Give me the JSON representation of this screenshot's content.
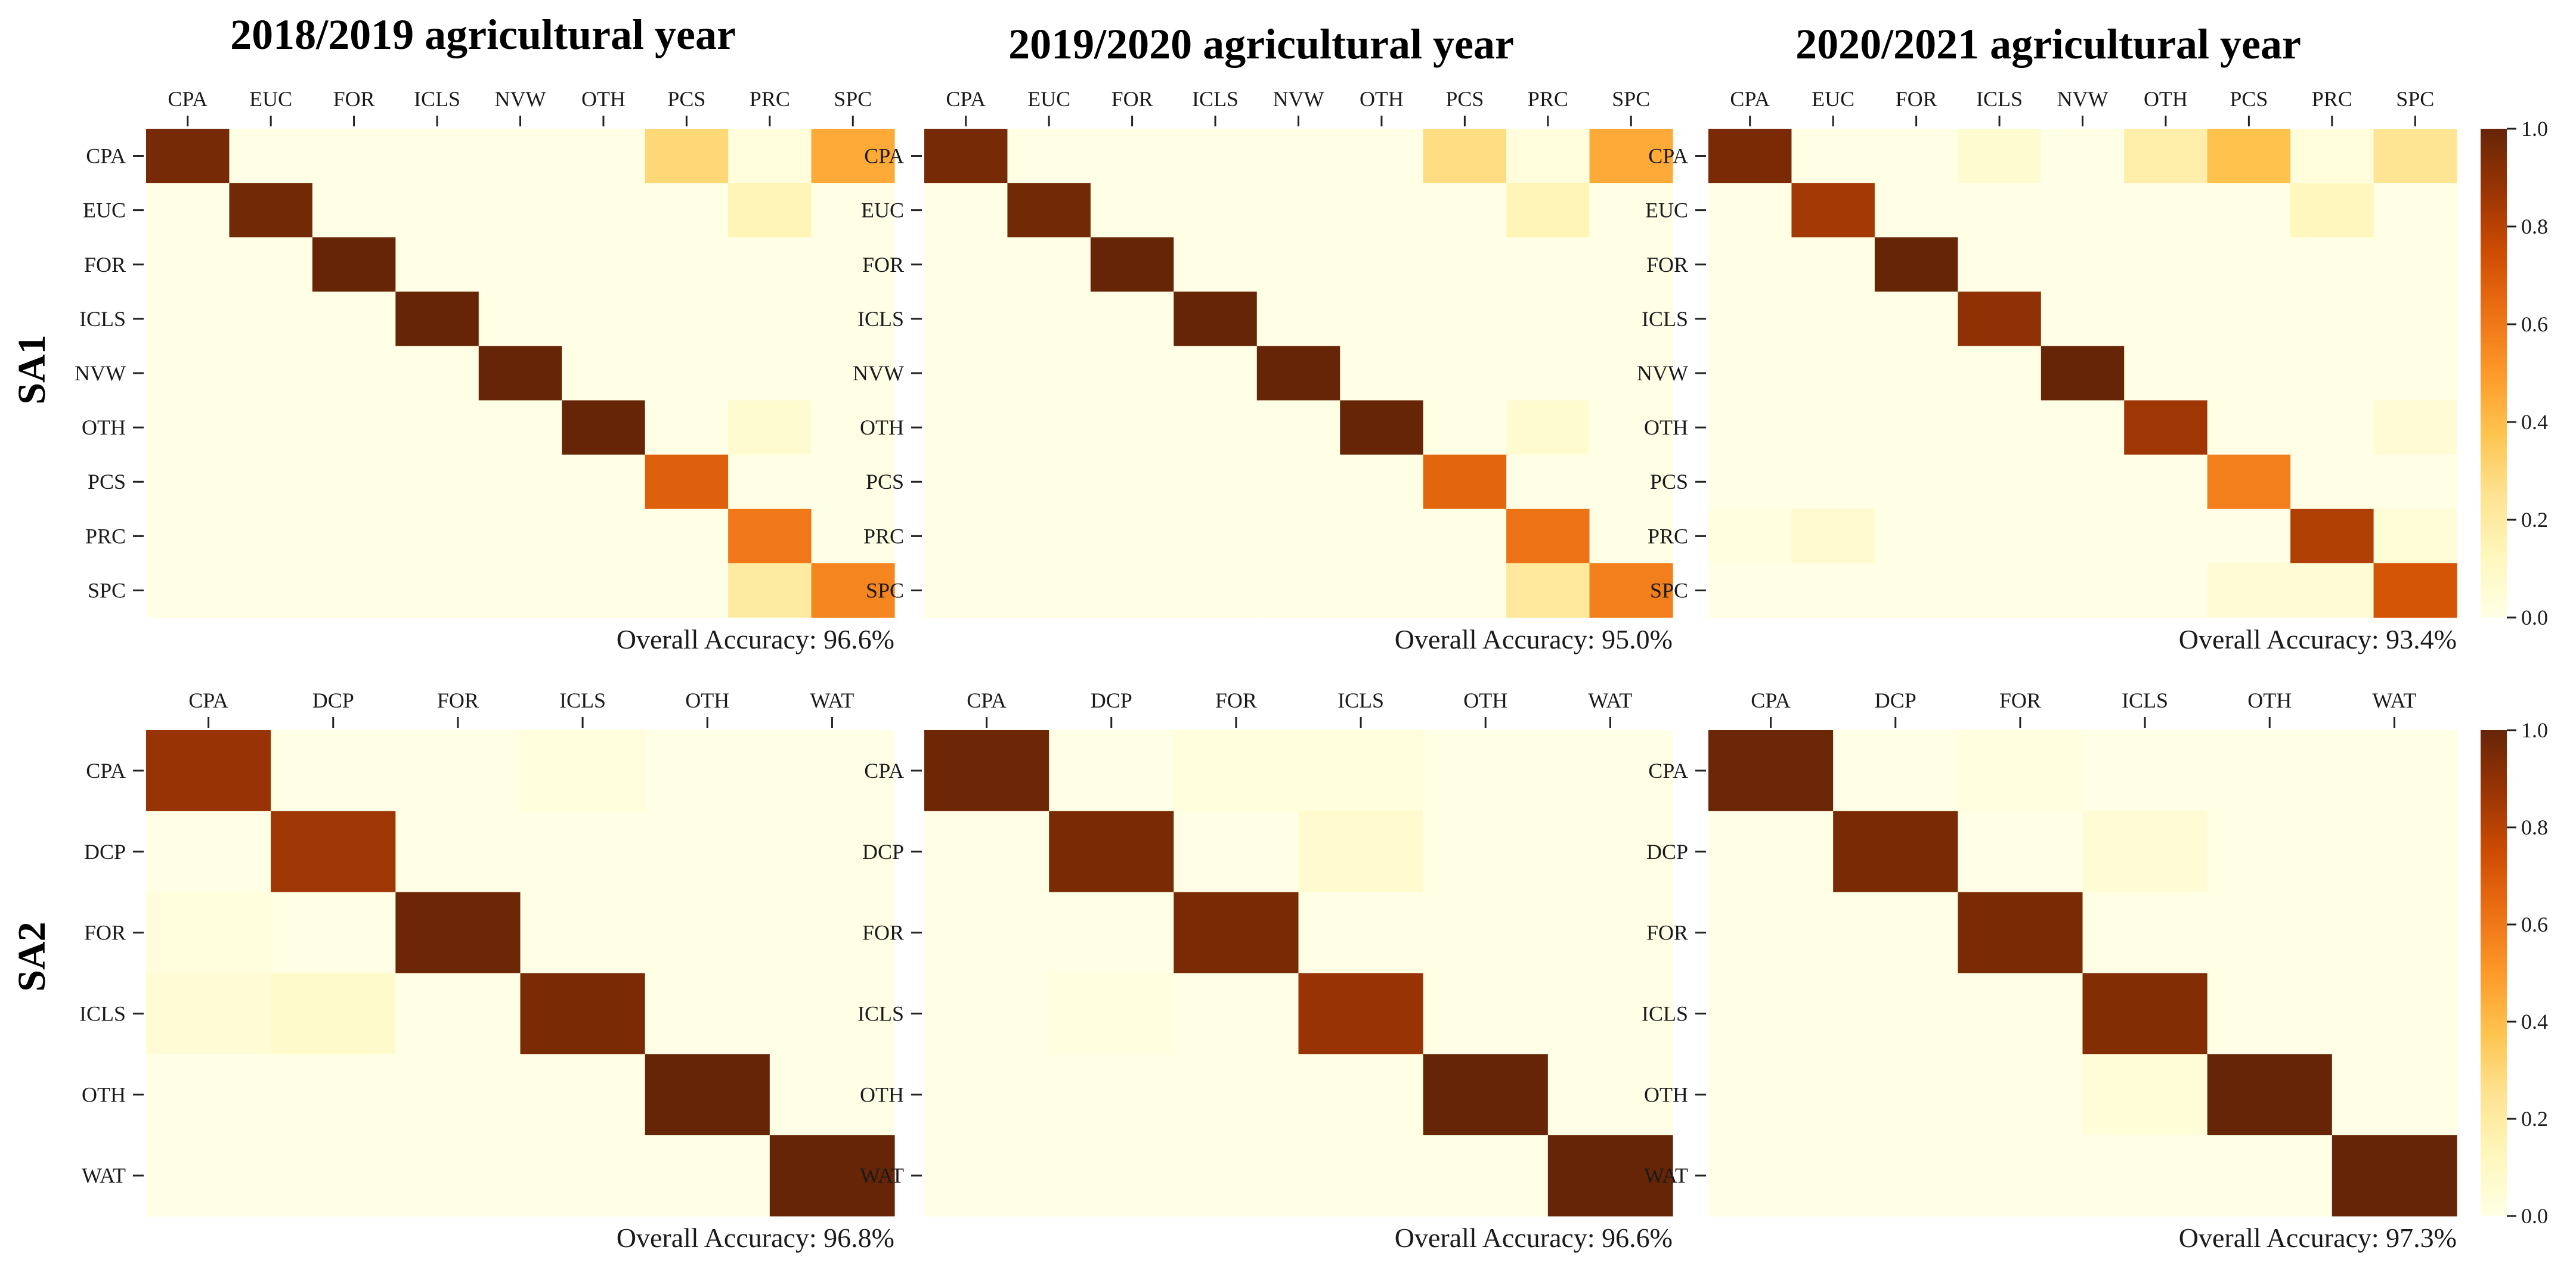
{
  "figure": {
    "column_titles": [
      "2018/2019 agricultural year",
      "2019/2020 agricultural year",
      "2020/2021 agricultural year"
    ],
    "row_labels": [
      "SA1",
      "SA2"
    ],
    "accuracy_prefix": "Overall Accuracy: "
  },
  "colorbar": {
    "ticks": [
      "0.0",
      "0.2",
      "0.4",
      "0.6",
      "0.8",
      "1.0"
    ],
    "range": [
      0,
      1
    ],
    "stops": [
      "#ffffe5",
      "#fff7bc",
      "#fee391",
      "#fec44f",
      "#fe9929",
      "#ec7014",
      "#cc4c02",
      "#993404",
      "#662506"
    ]
  },
  "chart_data": [
    {
      "type": "heatmap",
      "title": "2018/2019 agricultural year",
      "row_label": "SA1",
      "categories": [
        "CPA",
        "EUC",
        "FOR",
        "ICLS",
        "NVW",
        "OTH",
        "PCS",
        "PRC",
        "SPC"
      ],
      "overall_accuracy": "96.6%",
      "values": [
        [
          0.96,
          0.0,
          0.0,
          0.0,
          0.0,
          0.0,
          0.3,
          0.03,
          0.45
        ],
        [
          0.0,
          0.97,
          0.0,
          0.0,
          0.0,
          0.0,
          0.0,
          0.14,
          0.0
        ],
        [
          0.0,
          0.0,
          1.0,
          0.0,
          0.0,
          0.0,
          0.0,
          0.0,
          0.0
        ],
        [
          0.0,
          0.0,
          0.0,
          1.0,
          0.0,
          0.0,
          0.0,
          0.0,
          0.0
        ],
        [
          0.0,
          0.0,
          0.0,
          0.0,
          1.0,
          0.0,
          0.0,
          0.0,
          0.0
        ],
        [
          0.0,
          0.0,
          0.0,
          0.0,
          0.0,
          1.0,
          0.0,
          0.06,
          0.0
        ],
        [
          0.0,
          0.0,
          0.0,
          0.0,
          0.0,
          0.0,
          0.68,
          0.0,
          0.0
        ],
        [
          0.0,
          0.0,
          0.0,
          0.0,
          0.0,
          0.0,
          0.0,
          0.6,
          0.0
        ],
        [
          0.0,
          0.0,
          0.0,
          0.0,
          0.0,
          0.0,
          0.0,
          0.2,
          0.56
        ]
      ]
    },
    {
      "type": "heatmap",
      "title": "2019/2020 agricultural year",
      "row_label": "SA1",
      "categories": [
        "CPA",
        "EUC",
        "FOR",
        "ICLS",
        "NVW",
        "OTH",
        "PCS",
        "PRC",
        "SPC"
      ],
      "overall_accuracy": "95.0%",
      "values": [
        [
          0.96,
          0.0,
          0.0,
          0.0,
          0.0,
          0.0,
          0.28,
          0.03,
          0.45
        ],
        [
          0.0,
          0.97,
          0.0,
          0.0,
          0.0,
          0.0,
          0.0,
          0.14,
          0.0
        ],
        [
          0.0,
          0.0,
          1.0,
          0.0,
          0.0,
          0.0,
          0.0,
          0.0,
          0.0
        ],
        [
          0.0,
          0.0,
          0.0,
          1.0,
          0.0,
          0.0,
          0.0,
          0.0,
          0.0
        ],
        [
          0.0,
          0.0,
          0.0,
          0.0,
          1.0,
          0.0,
          0.0,
          0.0,
          0.0
        ],
        [
          0.0,
          0.0,
          0.0,
          0.0,
          0.0,
          1.0,
          0.0,
          0.06,
          0.0
        ],
        [
          0.0,
          0.0,
          0.0,
          0.0,
          0.0,
          0.0,
          0.66,
          0.0,
          0.0
        ],
        [
          0.0,
          0.0,
          0.0,
          0.0,
          0.0,
          0.0,
          0.0,
          0.62,
          0.0
        ],
        [
          0.0,
          0.0,
          0.0,
          0.0,
          0.0,
          0.0,
          0.0,
          0.22,
          0.58
        ]
      ]
    },
    {
      "type": "heatmap",
      "title": "2020/2021 agricultural year",
      "row_label": "SA1",
      "categories": [
        "CPA",
        "EUC",
        "FOR",
        "ICLS",
        "NVW",
        "OTH",
        "PCS",
        "PRC",
        "SPC"
      ],
      "overall_accuracy": "93.4%",
      "values": [
        [
          0.95,
          0.0,
          0.0,
          0.06,
          0.0,
          0.18,
          0.38,
          0.03,
          0.24
        ],
        [
          0.0,
          0.85,
          0.0,
          0.0,
          0.0,
          0.0,
          0.0,
          0.12,
          0.0
        ],
        [
          0.0,
          0.0,
          1.0,
          0.0,
          0.0,
          0.0,
          0.0,
          0.0,
          0.0
        ],
        [
          0.0,
          0.0,
          0.0,
          0.9,
          0.0,
          0.0,
          0.0,
          0.0,
          0.0
        ],
        [
          0.0,
          0.0,
          0.0,
          0.0,
          1.0,
          0.0,
          0.0,
          0.0,
          0.0
        ],
        [
          0.0,
          0.0,
          0.0,
          0.0,
          0.0,
          0.86,
          0.0,
          0.0,
          0.05
        ],
        [
          0.0,
          0.0,
          0.0,
          0.0,
          0.0,
          0.0,
          0.58,
          0.0,
          0.0
        ],
        [
          0.02,
          0.07,
          0.0,
          0.0,
          0.0,
          0.0,
          0.0,
          0.82,
          0.04
        ],
        [
          0.0,
          0.0,
          0.0,
          0.0,
          0.0,
          0.0,
          0.05,
          0.05,
          0.72
        ]
      ]
    },
    {
      "type": "heatmap",
      "title": "2018/2019 agricultural year",
      "row_label": "SA2",
      "categories": [
        "CPA",
        "DCP",
        "FOR",
        "ICLS",
        "OTH",
        "WAT"
      ],
      "overall_accuracy": "96.8%",
      "values": [
        [
          0.88,
          0.0,
          0.0,
          0.03,
          0.0,
          0.0
        ],
        [
          0.0,
          0.86,
          0.0,
          0.0,
          0.0,
          0.0
        ],
        [
          0.03,
          0.0,
          0.98,
          0.0,
          0.0,
          0.0
        ],
        [
          0.05,
          0.08,
          0.0,
          0.95,
          0.0,
          0.0
        ],
        [
          0.0,
          0.0,
          0.0,
          0.0,
          1.0,
          0.0
        ],
        [
          0.0,
          0.0,
          0.0,
          0.0,
          0.0,
          1.0
        ]
      ]
    },
    {
      "type": "heatmap",
      "title": "2019/2020 agricultural year",
      "row_label": "SA2",
      "categories": [
        "CPA",
        "DCP",
        "FOR",
        "ICLS",
        "OTH",
        "WAT"
      ],
      "overall_accuracy": "96.6%",
      "values": [
        [
          0.98,
          0.0,
          0.03,
          0.03,
          0.0,
          0.0
        ],
        [
          0.0,
          0.95,
          0.0,
          0.07,
          0.0,
          0.0
        ],
        [
          0.0,
          0.0,
          0.95,
          0.0,
          0.0,
          0.0
        ],
        [
          0.0,
          0.02,
          0.0,
          0.88,
          0.0,
          0.0
        ],
        [
          0.0,
          0.0,
          0.0,
          0.0,
          1.0,
          0.0
        ],
        [
          0.0,
          0.0,
          0.0,
          0.0,
          0.0,
          1.0
        ]
      ]
    },
    {
      "type": "heatmap",
      "title": "2020/2021 agricultural year",
      "row_label": "SA2",
      "categories": [
        "CPA",
        "DCP",
        "FOR",
        "ICLS",
        "OTH",
        "WAT"
      ],
      "overall_accuracy": "97.3%",
      "values": [
        [
          0.99,
          0.0,
          0.02,
          0.0,
          0.0,
          0.0
        ],
        [
          0.0,
          0.95,
          0.0,
          0.05,
          0.0,
          0.0
        ],
        [
          0.0,
          0.0,
          0.95,
          0.0,
          0.0,
          0.0
        ],
        [
          0.0,
          0.0,
          0.0,
          0.93,
          0.0,
          0.0
        ],
        [
          0.0,
          0.0,
          0.0,
          0.04,
          1.0,
          0.0
        ],
        [
          0.0,
          0.0,
          0.0,
          0.0,
          0.0,
          1.0
        ]
      ]
    }
  ]
}
